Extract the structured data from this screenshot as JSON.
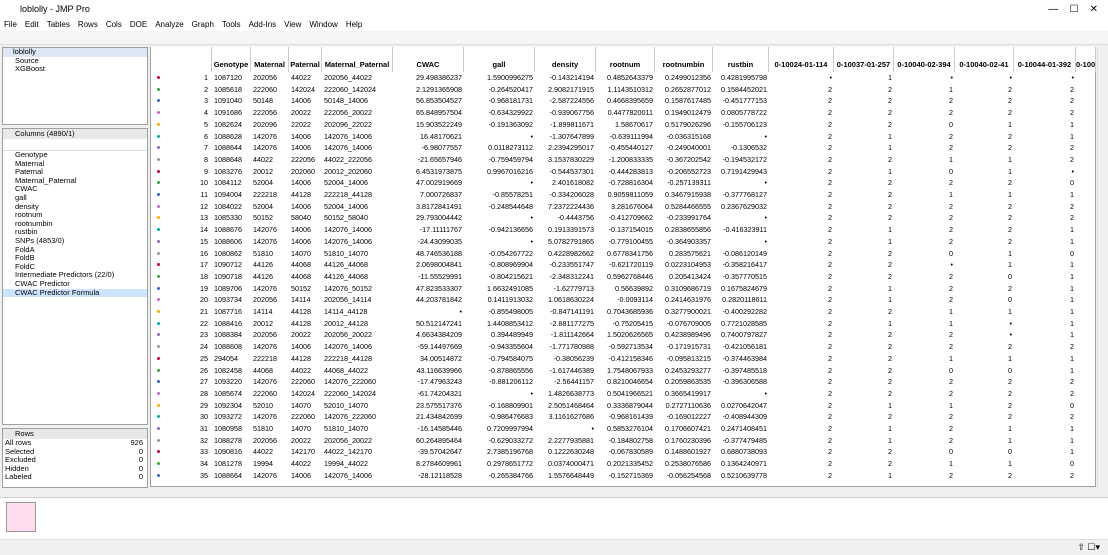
{
  "window": {
    "title": "loblolly - JMP Pro"
  },
  "menu": [
    "File",
    "Edit",
    "Tables",
    "Rows",
    "Cols",
    "DOE",
    "Analyze",
    "Graph",
    "Tools",
    "Add-Ins",
    "View",
    "Window",
    "Help"
  ],
  "tables_panel": {
    "name": "loblolly",
    "scripts": [
      "Source",
      "XGBoost"
    ]
  },
  "columns_panel": {
    "title": "Columns (4890/1)",
    "items": [
      "Genotype",
      "Maternal",
      "Paternal",
      "Maternal_Paternal",
      "CWAC",
      "gall",
      "density",
      "rootnum",
      "rootnumbin",
      "rustbin",
      "SNPs (4853/0)",
      "FoldA",
      "FoldB",
      "FoldC",
      "Intermediate Predictors (22/0)",
      "CWAC Predictor",
      "CWAC Predictor Formula"
    ]
  },
  "rows_panel": {
    "title": "Rows",
    "items": [
      [
        "All rows",
        "926"
      ],
      [
        "Selected",
        "0"
      ],
      [
        "Excluded",
        "0"
      ],
      [
        "Hidden",
        "0"
      ],
      [
        "Labeled",
        "0"
      ]
    ]
  },
  "table": {
    "columns": [
      "Genotype",
      "Maternal",
      "Paternal",
      "Maternal_Paternal",
      "CWAC",
      "gall",
      "density",
      "rootnum",
      "rootnumbin",
      "rustbin",
      "0-10024-01-114",
      "0-10037-01-257",
      "0-10040-02-394",
      "0-10040-02-41",
      "0-10044-01-392",
      "0-100"
    ],
    "row_numbers": [
      "1",
      "2",
      "3",
      "4",
      "5",
      "6",
      "7",
      "8",
      "9",
      "10",
      "11",
      "12",
      "13",
      "14",
      "15",
      "16",
      "17",
      "18",
      "19",
      "20",
      "21",
      "22",
      "23",
      "24",
      "25",
      "26",
      "27",
      "28",
      "29",
      "30",
      "31",
      "32",
      "33",
      "34",
      "35"
    ],
    "rows": [
      [
        "1087120",
        "202056",
        "44022",
        "202056_44022",
        "29.498386237",
        "1.5900996275",
        "-0.143214194",
        "0.4852643379",
        "0.2499012356",
        "0.4281995798",
        "•",
        "1",
        "•",
        "•",
        "•"
      ],
      [
        "1085618",
        "222060",
        "142024",
        "222060_142024",
        "2.1291365908",
        "-0.264520417",
        "2.9082171915",
        "1.1143510312",
        "0.2652877012",
        "0.1584452021",
        "2",
        "2",
        "1",
        "2",
        "2"
      ],
      [
        "1091040",
        "50148",
        "14006",
        "50148_14006",
        "56.853504527",
        "-0.968181731",
        "-2.587224556",
        "0.4668395659",
        "0.1587617485",
        "-0.451777153",
        "2",
        "2",
        "2",
        "2",
        "2"
      ],
      [
        "1091686",
        "222056",
        "20022",
        "222056_20022",
        "65.848957504",
        "-0.634329922",
        "-0.939067756",
        "0.4477820011",
        "0.1949012479",
        "0.0805778722",
        "2",
        "2",
        "2",
        "2",
        "2"
      ],
      [
        "1082624",
        "202096",
        "22022",
        "202096_22022",
        "15.903522249",
        "-0.191363092",
        "-1.899811671",
        "1.58670617",
        "0.5179026296",
        "-0.155706123",
        "2",
        "2",
        "0",
        "1",
        "1"
      ],
      [
        "1088628",
        "142076",
        "14006",
        "142076_14006",
        "16.48170621",
        "•",
        "-1.307647899",
        "-0.639111994",
        "-0.036315168",
        "•",
        "2",
        "1",
        "2",
        "2",
        "1"
      ],
      [
        "1088644",
        "142076",
        "14006",
        "142076_14006",
        "-6.98077557",
        "0.0118273112",
        "2.2394295017",
        "-0.455440127",
        "-0.249040001",
        "-0.1306532",
        "2",
        "1",
        "2",
        "2",
        "2"
      ],
      [
        "1088648",
        "44022",
        "222056",
        "44022_222056",
        "-21.65657946",
        "-0.759459794",
        "3.1537830229",
        "-1.200833335",
        "-0.367202542",
        "-0.194532172",
        "2",
        "2",
        "1",
        "1",
        "2"
      ],
      [
        "1083276",
        "20012",
        "202060",
        "20012_202060",
        "6.4531973875",
        "0.9967016216",
        "-0.544537301",
        "-0.444283813",
        "-0.206552723",
        "0.7191429943",
        "2",
        "1",
        "0",
        "1",
        "•"
      ],
      [
        "1084112",
        "52004",
        "14006",
        "52004_14006",
        "47.002919669",
        "•",
        "2.401618082",
        "-0.728816304",
        "-0.257139311",
        "•",
        "2",
        "2",
        "2",
        "2",
        "0"
      ],
      [
        "1094004",
        "222218",
        "44128",
        "222218_44128",
        "7.000726837",
        "-0.85578251",
        "-0.334206028",
        "0.9059811059",
        "0.3467915938",
        "-0.377768127",
        "2",
        "2",
        "1",
        "1",
        "1"
      ],
      [
        "1084022",
        "52004",
        "14006",
        "52004_14006",
        "3.8172841491",
        "-0.248544648",
        "7.2372224436",
        "3.281676064",
        "0.5284466555",
        "0.2367629032",
        "2",
        "2",
        "2",
        "2",
        "2"
      ],
      [
        "1085330",
        "50152",
        "58040",
        "50152_58040",
        "29.793004442",
        "•",
        "-0.4443756",
        "-0.412709662",
        "-0.233991764",
        "•",
        "2",
        "2",
        "2",
        "2",
        "2"
      ],
      [
        "1088676",
        "142076",
        "14006",
        "142076_14006",
        "-17.11111767",
        "-0.942136656",
        "0.1913391573",
        "-0.137154015",
        "0.2838655856",
        "-0.416323911",
        "2",
        "1",
        "2",
        "2",
        "1"
      ],
      [
        "1088606",
        "142076",
        "14006",
        "142076_14006",
        "-24.43099035",
        "•",
        "5.0782791865",
        "-0.779100455",
        "-0.364903357",
        "•",
        "2",
        "1",
        "2",
        "2",
        "1"
      ],
      [
        "1080862",
        "51810",
        "14070",
        "51810_14070",
        "48.746536188",
        "-0.054267722",
        "0.4228982662",
        "0.6778341756",
        "0.283575621",
        "-0.086120149",
        "2",
        "2",
        "0",
        "1",
        "0"
      ],
      [
        "1090712",
        "44126",
        "44068",
        "44126_44068",
        "2.0698004841",
        "-0.808969904",
        "-0.233551747",
        "-0.621720119",
        "0.0223104953",
        "-0.358216417",
        "2",
        "2",
        "•",
        "1",
        "1"
      ],
      [
        "1090718",
        "44126",
        "44068",
        "44126_44068",
        "-11.55529991",
        "-0.804215621",
        "-2.348312241",
        "0.5962768446",
        "0.205413424",
        "-0.357770515",
        "2",
        "2",
        "2",
        "0",
        "1"
      ],
      [
        "1089706",
        "142076",
        "50152",
        "142076_50152",
        "47.823533307",
        "1.6632491085",
        "-1.62779713",
        "0.56639892",
        "0.3109686719",
        "0.1675824679",
        "2",
        "1",
        "2",
        "2",
        "1"
      ],
      [
        "1093734",
        "202056",
        "14114",
        "202056_14114",
        "44.203781842",
        "0.1411913032",
        "1.0618630224",
        "-0.0093114",
        "0.2414631976",
        "0.2820118611",
        "2",
        "1",
        "2",
        "0",
        "1"
      ],
      [
        "1087716",
        "14114",
        "44128",
        "14114_44128",
        "•",
        "-0.855498005",
        "-0.847141191",
        "0.7043685936",
        "0.3277900021",
        "-0.400292282",
        "2",
        "2",
        "1",
        "1",
        "1"
      ],
      [
        "1088416",
        "20012",
        "44128",
        "20012_44128",
        "50.512147241",
        "1.4408853412",
        "-2.881177275",
        "-0.75205415",
        "-0.076709005",
        "0.7721028585",
        "2",
        "1",
        "1",
        "•",
        "1"
      ],
      [
        "1088384",
        "202056",
        "20022",
        "202056_20022",
        "4.6634384209",
        "0.394489949",
        "-1.811142664",
        "1.5020626565",
        "0.4238989496",
        "0.7400797827",
        "2",
        "2",
        "2",
        "•",
        "1"
      ],
      [
        "1088608",
        "142076",
        "14006",
        "142076_14006",
        "-59.14497669",
        "-0.943355604",
        "-1.771780988",
        "-0.592713534",
        "-0.171915731",
        "-0.421056181",
        "2",
        "2",
        "2",
        "2",
        "2"
      ],
      [
        "294054",
        "222218",
        "44128",
        "222218_44128",
        "34.00514872",
        "-0.794584075",
        "-0.38056239",
        "-0.412158346",
        "-0.095813215",
        "-0.374463984",
        "2",
        "2",
        "1",
        "1",
        "1"
      ],
      [
        "1082458",
        "44068",
        "44022",
        "44068_44022",
        "43.116639966",
        "-0.878865556",
        "-1.617446389",
        "1.7548067933",
        "0.2453293277",
        "-0.397485518",
        "2",
        "2",
        "0",
        "0",
        "1"
      ],
      [
        "1093220",
        "142076",
        "222060",
        "142076_222060",
        "-17.47963243",
        "-0.881206112",
        "-2.56441157",
        "0.8210046654",
        "0.2059863535",
        "-0.396306588",
        "2",
        "2",
        "2",
        "2",
        "2"
      ],
      [
        "1085674",
        "222060",
        "142024",
        "222060_142024",
        "-61.74204321",
        "•",
        "1.4826638773",
        "0.5041966521",
        "0.3665419917",
        "•",
        "2",
        "2",
        "2",
        "2",
        "2"
      ],
      [
        "1092304",
        "52010",
        "14070",
        "52010_14070",
        "23.575517376",
        "-0.168809901",
        "2.5051468464",
        "0.3336879044",
        "0.2727110636",
        "0.0270642047",
        "2",
        "1",
        "1",
        "2",
        "0"
      ],
      [
        "1093272",
        "142076",
        "222060",
        "142076_222060",
        "21.434842699",
        "-0.986476683",
        "3.1161627686",
        "-0.968161439",
        "-0.169012227",
        "-0.408944309",
        "2",
        "2",
        "2",
        "2",
        "2"
      ],
      [
        "1080958",
        "51810",
        "14070",
        "51810_14070",
        "-16.14585446",
        "0.7209997994",
        "•",
        "0.5853276104",
        "0.1706607421",
        "0.2471408451",
        "2",
        "1",
        "2",
        "1",
        "1"
      ],
      [
        "1088278",
        "202056",
        "20022",
        "202056_20022",
        "60.264895464",
        "-0.629033272",
        "2.2277935881",
        "-0.184802758",
        "0.1760230396",
        "-0.377479485",
        "2",
        "1",
        "2",
        "1",
        "1"
      ],
      [
        "1090816",
        "44022",
        "142170",
        "44022_142170",
        "-39.57042647",
        "2.7385196768",
        "0.1222630248",
        "-0.067830589",
        "0.1488601927",
        "0.6880738093",
        "2",
        "2",
        "0",
        "0",
        "1"
      ],
      [
        "1081278",
        "19994",
        "44022",
        "19994_44022",
        "8.2784609961",
        "0.2978651772",
        "0.0374000471",
        "0.2021335452",
        "0.2538076586",
        "0.1364240971",
        "2",
        "2",
        "1",
        "1",
        "0"
      ],
      [
        "1088664",
        "142076",
        "14006",
        "142076_14006",
        "-28.12118528",
        "-0.265384766",
        "1.5576648449",
        "-0.152715369",
        "-0.056254568",
        "0.5210639778",
        "2",
        "1",
        "2",
        "2",
        "2"
      ]
    ]
  }
}
